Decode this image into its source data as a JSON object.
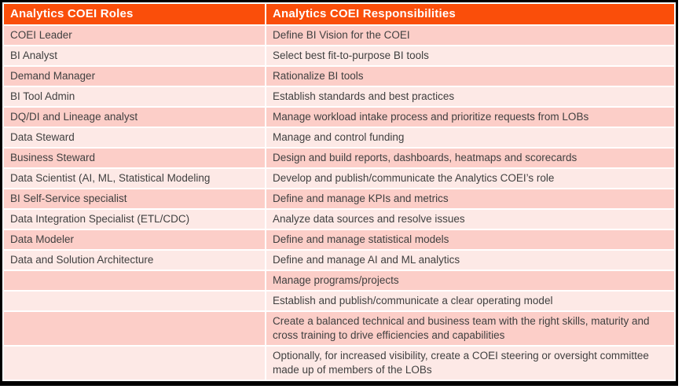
{
  "colors": {
    "header_bg": "#FA4E0A",
    "header_text": "#FFFFFF",
    "row_odd_bg": "#FCCEC8",
    "row_even_bg": "#FDE9E6",
    "body_text": "#404040",
    "frame": "#000000"
  },
  "table": {
    "headers": [
      "Analytics COEI Roles",
      "Analytics COEI Responsibilities"
    ],
    "rows": [
      {
        "role": "COEI Leader",
        "responsibility": "Define BI Vision for the COEI"
      },
      {
        "role": "BI Analyst",
        "responsibility": "Select best fit-to-purpose BI tools"
      },
      {
        "role": "Demand Manager",
        "responsibility": "Rationalize BI tools"
      },
      {
        "role": "BI Tool Admin",
        "responsibility": "Establish standards and best practices"
      },
      {
        "role": "DQ/DI and Lineage analyst",
        "responsibility": "Manage workload intake process and prioritize requests from LOBs"
      },
      {
        "role": "Data Steward",
        "responsibility": "Manage and control funding"
      },
      {
        "role": "Business Steward",
        "responsibility": "Design and build reports, dashboards, heatmaps and scorecards"
      },
      {
        "role": "Data Scientist (AI, ML, Statistical Modeling",
        "responsibility": "Develop and publish/communicate the Analytics COEI’s role"
      },
      {
        "role": "BI Self-Service specialist",
        "responsibility": "Define and manage KPIs and metrics"
      },
      {
        "role": "Data Integration Specialist (ETL/CDC)",
        "responsibility": "Analyze data sources and resolve issues"
      },
      {
        "role": "Data Modeler",
        "responsibility": "Define and manage statistical models"
      },
      {
        "role": "Data and Solution Architecture",
        "responsibility": "Define and manage AI and ML analytics"
      },
      {
        "role": "",
        "responsibility": "Manage programs/projects"
      },
      {
        "role": "",
        "responsibility": "Establish and publish/communicate a clear operating model"
      },
      {
        "role": "",
        "responsibility": "Create a balanced technical and business team with the right skills, maturity and cross training to drive efficiencies and capabilities"
      },
      {
        "role": "",
        "responsibility": "Optionally, for increased visibility, create a COEI steering or oversight committee made up of members of the LOBs"
      }
    ]
  }
}
